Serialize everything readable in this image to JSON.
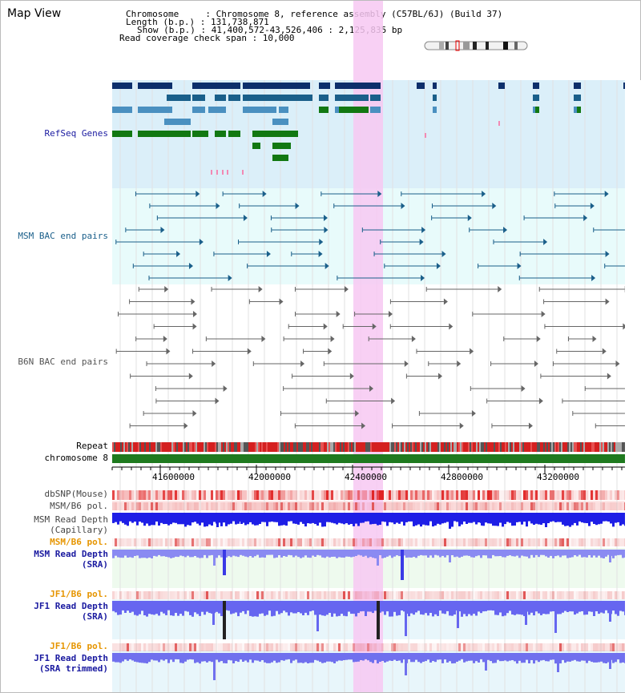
{
  "page": {
    "title": "Map View"
  },
  "info": {
    "chromosome": "Chromosome     : Chromosome 8, reference assembly (C57BL/6J) (Build 37)",
    "length": "Length (b.p.) : 131,738,871",
    "show": "Show (b.p.) : 41,400,572-43,526,406 : 2,125,835 bp",
    "coverage": "Read coverage check span : 10,000"
  },
  "tracks": {
    "refseq": "RefSeq Genes",
    "msm_bac": "MSM BAC end pairs",
    "b6n_bac": "B6N BAC end pairs",
    "repeat": "Repeat",
    "chromosome": "chromosome 8",
    "dbsnp": "dbSNP(Mouse)",
    "msm_b6_pol_1": "MSM/B6 pol.",
    "msm_depth_cap_1": "MSM Read Depth",
    "msm_depth_cap_2": "(Capillary)",
    "msm_b6_pol_2": "MSM/B6 pol.",
    "msm_depth_sra_1": "MSM Read Depth",
    "msm_depth_sra_2": "(SRA)",
    "jf1_b6_pol_1": "JF1/B6 pol.",
    "jf1_depth_sra_1": "JF1 Read Depth",
    "jf1_depth_sra_2": "(SRA)",
    "jf1_b6_pol_2": "JF1/B6 pol.",
    "jf1_depth_trim_1": "JF1 Read Depth",
    "jf1_depth_trim_2": "(SRA trimmed)"
  },
  "axis": {
    "ticks": [
      "41600000",
      "42000000",
      "42400000",
      "42800000",
      "43200000"
    ]
  },
  "colors": {
    "refseq_label": "#1a1aa0",
    "msm_label": "#1a5f8a",
    "b6n_label": "#555555",
    "orange_label": "#e69500",
    "blue_label": "#1a1aa0",
    "highlight": "#f7c8f2",
    "chrom_bar": "#1f7a1f"
  }
}
